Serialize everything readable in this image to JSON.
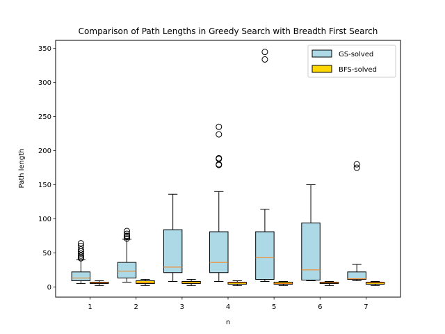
{
  "chart_data": {
    "type": "box",
    "title": "Comparison of Path Lengths in Greedy Search with Breadth First Search",
    "xlabel": "n",
    "ylabel": "Path length",
    "categories": [
      "1",
      "2",
      "3",
      "4",
      "5",
      "6",
      "7"
    ],
    "ylim": [
      -15,
      362
    ],
    "yticks": [
      0,
      50,
      100,
      150,
      200,
      250,
      300,
      350
    ],
    "legend": {
      "position": "top-right"
    },
    "series": [
      {
        "name": "GS-solved",
        "color": "#add8e6",
        "median_color": "#ff7f0e",
        "boxes": [
          {
            "whislo": 5,
            "q1": 9,
            "med": 13,
            "q3": 22,
            "whishi": 40,
            "fliers": [
              42,
              44,
              46,
              49,
              52,
              55,
              60,
              64
            ]
          },
          {
            "whislo": 7,
            "q1": 13,
            "med": 23,
            "q3": 36,
            "whishi": 70,
            "fliers": [
              71,
              73,
              75,
              78,
              82
            ]
          },
          {
            "whislo": 8,
            "q1": 21,
            "med": 29,
            "q3": 84,
            "whishi": 136,
            "fliers": []
          },
          {
            "whislo": 8,
            "q1": 21,
            "med": 36,
            "q3": 81,
            "whishi": 140,
            "fliers": [
              179,
              180,
              188,
              189,
              224,
              235
            ]
          },
          {
            "whislo": 8,
            "q1": 11,
            "med": 43,
            "q3": 81,
            "whishi": 114,
            "fliers": [
              334,
              345
            ]
          },
          {
            "whislo": 9,
            "q1": 10,
            "med": 25,
            "q3": 94,
            "whishi": 150,
            "fliers": []
          },
          {
            "whislo": 9,
            "q1": 11,
            "med": 12,
            "q3": 22,
            "whishi": 33,
            "fliers": [
              175,
              180
            ]
          }
        ]
      },
      {
        "name": "BFS-solved",
        "color": "#ffd700",
        "median_color": "#ff7f0e",
        "boxes": [
          {
            "whislo": 2,
            "q1": 5,
            "med": 6,
            "q3": 7,
            "whishi": 9,
            "fliers": []
          },
          {
            "whislo": 2,
            "q1": 5,
            "med": 7,
            "q3": 9,
            "whishi": 11,
            "fliers": []
          },
          {
            "whislo": 2,
            "q1": 5,
            "med": 6,
            "q3": 8,
            "whishi": 11,
            "fliers": []
          },
          {
            "whislo": 2,
            "q1": 4,
            "med": 6,
            "q3": 7,
            "whishi": 9,
            "fliers": []
          },
          {
            "whislo": 2,
            "q1": 4,
            "med": 5,
            "q3": 7,
            "whishi": 8,
            "fliers": []
          },
          {
            "whislo": 2,
            "q1": 5,
            "med": 6,
            "q3": 7,
            "whishi": 8,
            "fliers": []
          },
          {
            "whislo": 2,
            "q1": 4,
            "med": 6,
            "q3": 7,
            "whishi": 8,
            "fliers": []
          }
        ]
      }
    ]
  }
}
